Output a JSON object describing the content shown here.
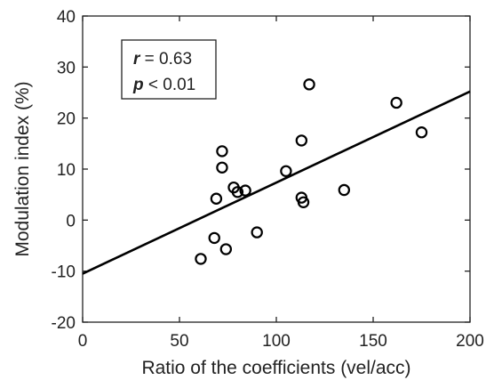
{
  "chart_data": {
    "type": "scatter",
    "xlabel": "Ratio of the coefficients (vel/acc)",
    "ylabel": "Modulation index (%)",
    "xlim": [
      0,
      200
    ],
    "ylim": [
      -20,
      40
    ],
    "xticks": [
      0,
      50,
      100,
      150,
      200
    ],
    "yticks": [
      -20,
      -10,
      0,
      10,
      20,
      30,
      40
    ],
    "points": [
      {
        "x": 61,
        "y": -7.6
      },
      {
        "x": 68,
        "y": -3.5
      },
      {
        "x": 69,
        "y": 4.2
      },
      {
        "x": 72,
        "y": 13.5
      },
      {
        "x": 72,
        "y": 10.3
      },
      {
        "x": 74,
        "y": -5.7
      },
      {
        "x": 78,
        "y": 6.4
      },
      {
        "x": 80,
        "y": 5.5
      },
      {
        "x": 84,
        "y": 5.8
      },
      {
        "x": 90,
        "y": -2.4
      },
      {
        "x": 105,
        "y": 9.6
      },
      {
        "x": 113,
        "y": 15.6
      },
      {
        "x": 113,
        "y": 4.4
      },
      {
        "x": 114,
        "y": 3.5
      },
      {
        "x": 117,
        "y": 26.6
      },
      {
        "x": 135,
        "y": 5.9
      },
      {
        "x": 162,
        "y": 23.0
      },
      {
        "x": 175,
        "y": 17.2
      }
    ],
    "fit_line": {
      "x": [
        0,
        200
      ],
      "y": [
        -10.5,
        25.2
      ]
    },
    "annotation": {
      "r_symbol": "r",
      "r_text": " = 0.63",
      "p_symbol": "p",
      "p_text": " < 0.01"
    },
    "grid": false,
    "colors": {
      "marker": "#000000",
      "line": "#000000",
      "axis": "#222222"
    }
  }
}
